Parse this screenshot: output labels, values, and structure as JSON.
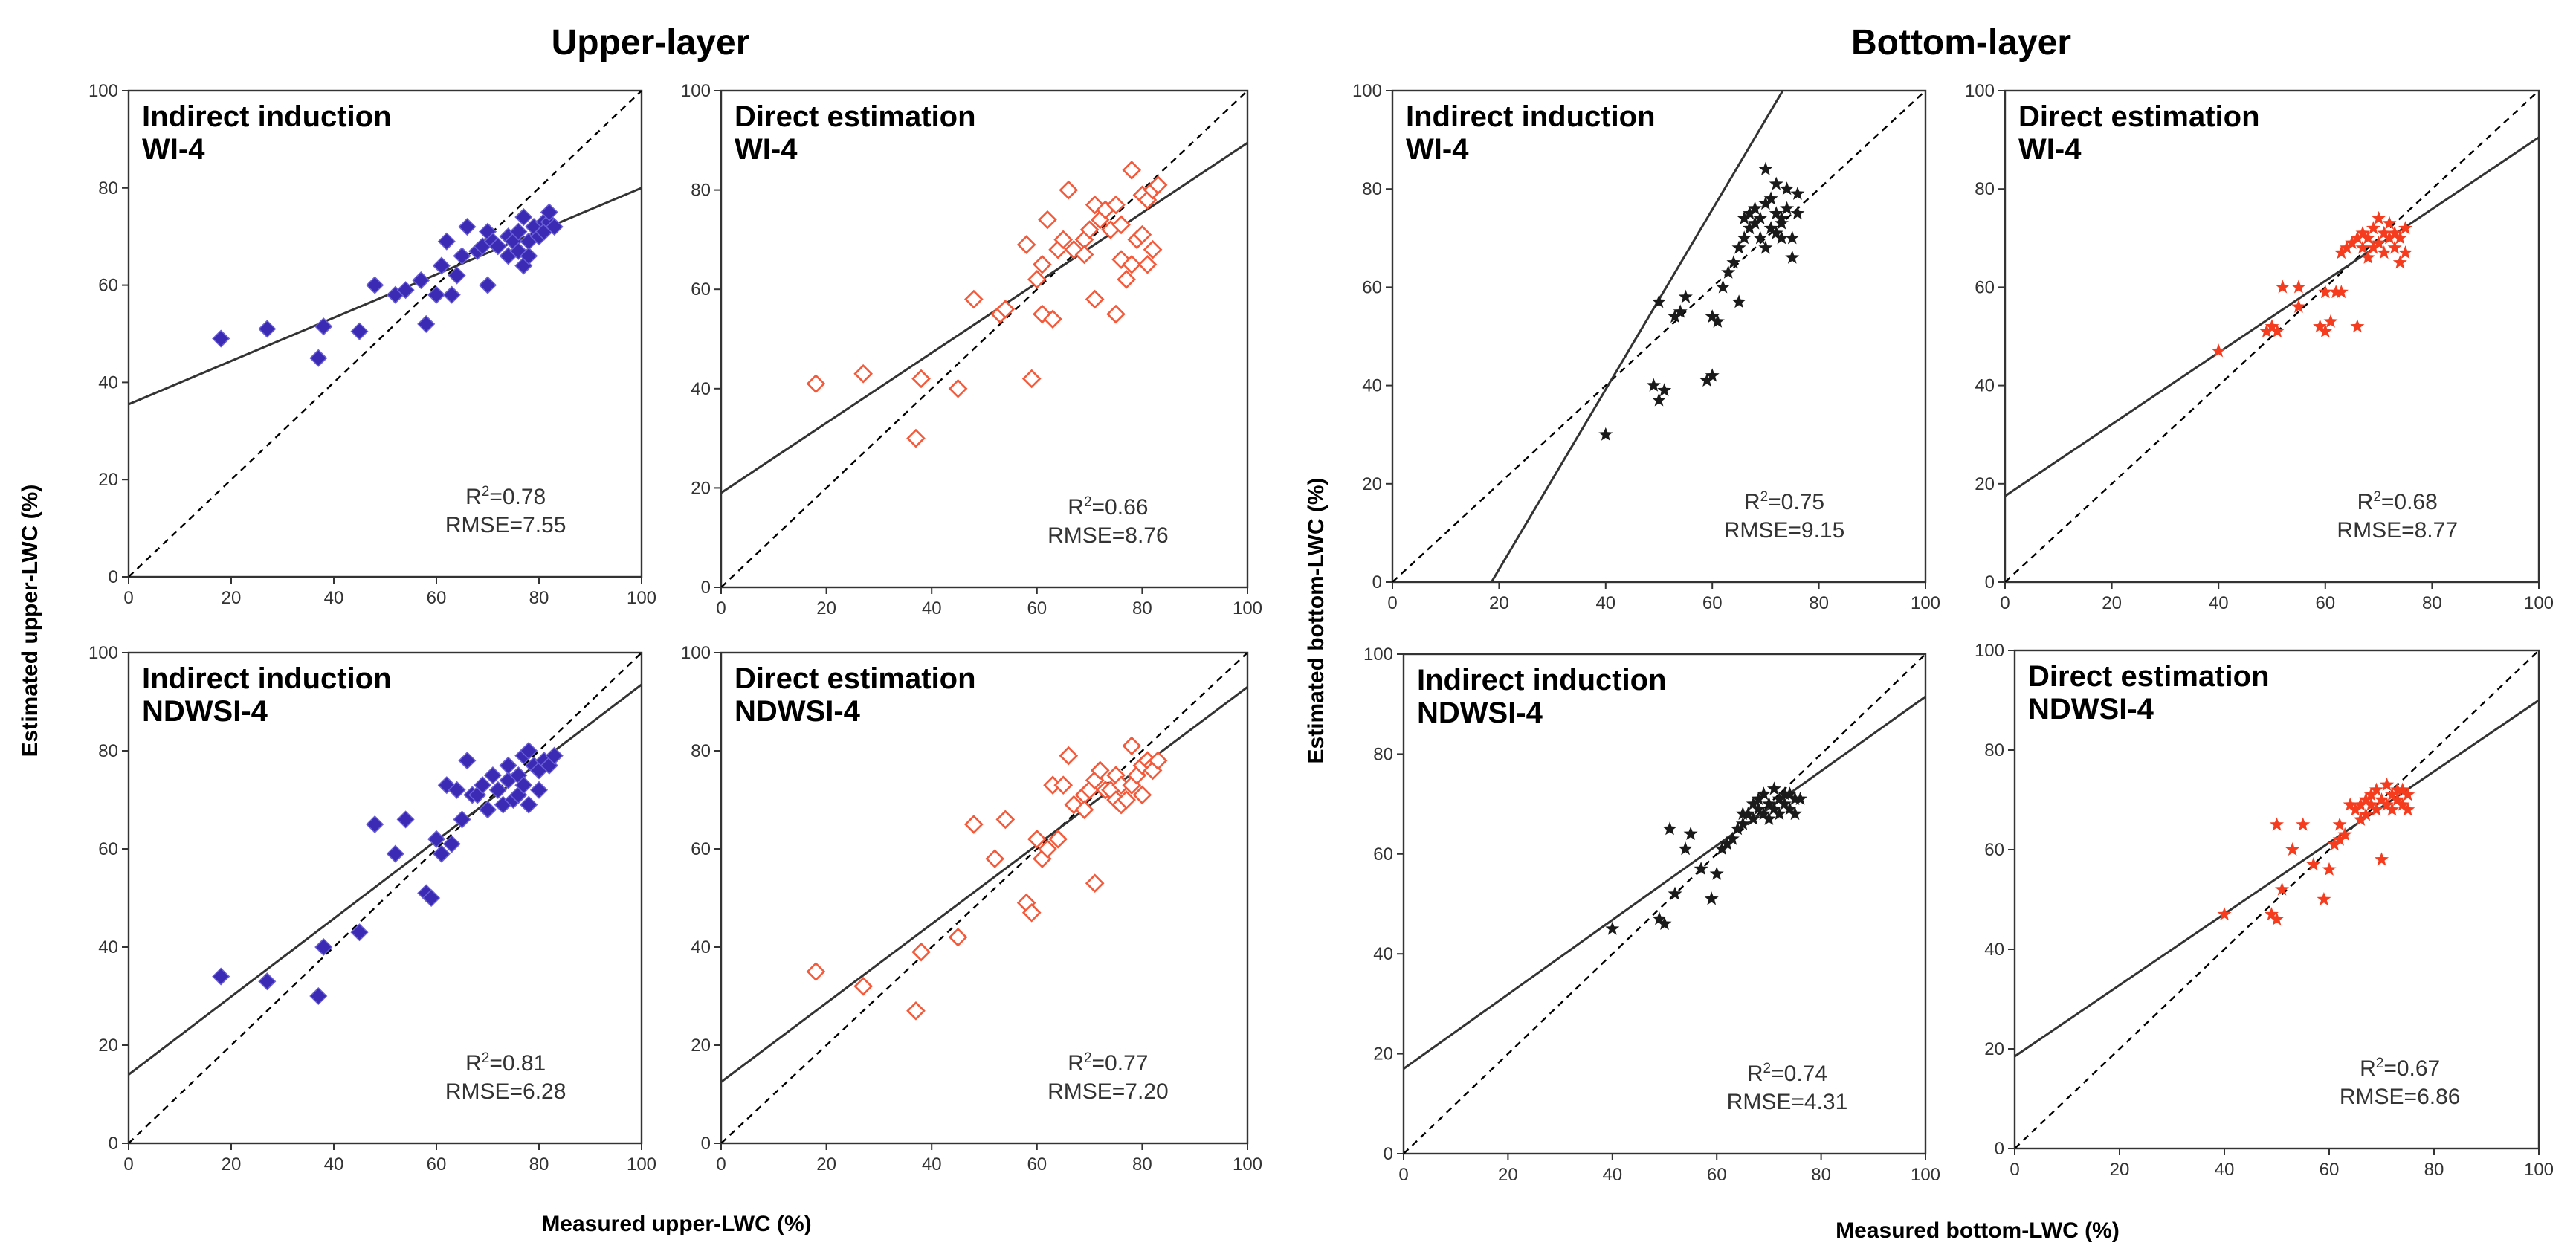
{
  "section_titles": [
    "Upper-layer",
    "Bottom-layer"
  ],
  "axis_titles": {
    "upper_y": "Estimated upper-LWC (%)",
    "bottom_y": "Estimated bottom-LWC (%)",
    "upper_x": "Measured upper-LWC (%)",
    "bottom_x": "Measured bottom-LWC (%)"
  },
  "colors": {
    "blue": "#3b2ab3",
    "orange": "#f4593a",
    "black": "#1a1a1a",
    "star_red": "#f53c1f"
  },
  "chart_data": [
    {
      "type": "scatter",
      "panel": "upper-indirect-wi4",
      "label": [
        "Indirect induction",
        "WI-4"
      ],
      "stat_r2": "=0.78",
      "stat_rmse": "RMSE=7.55",
      "xlim": [
        0,
        100
      ],
      "ylim": [
        0,
        100
      ],
      "ticks": [
        "0",
        "20",
        "40",
        "60",
        "80",
        "100"
      ],
      "marker": "diamond-filled",
      "color": "blue",
      "fit": {
        "slope": 0.445,
        "intercept": 35.5
      },
      "points": [
        [
          18,
          49
        ],
        [
          27,
          51
        ],
        [
          37,
          45
        ],
        [
          38,
          51.5
        ],
        [
          45,
          50.5
        ],
        [
          48,
          60
        ],
        [
          52,
          58
        ],
        [
          54,
          59
        ],
        [
          57,
          61
        ],
        [
          58,
          52
        ],
        [
          60,
          58
        ],
        [
          61,
          64
        ],
        [
          62,
          69
        ],
        [
          63,
          58
        ],
        [
          64,
          62
        ],
        [
          65,
          66
        ],
        [
          66,
          72
        ],
        [
          68,
          67
        ],
        [
          69,
          68
        ],
        [
          70,
          71
        ],
        [
          70,
          60
        ],
        [
          71,
          69
        ],
        [
          72,
          68
        ],
        [
          74,
          70
        ],
        [
          74,
          66
        ],
        [
          75,
          69
        ],
        [
          76,
          67
        ],
        [
          76,
          71
        ],
        [
          77,
          64
        ],
        [
          77,
          74
        ],
        [
          78,
          69
        ],
        [
          78,
          66
        ],
        [
          79,
          72
        ],
        [
          80,
          70
        ],
        [
          81,
          73
        ],
        [
          81,
          71
        ],
        [
          82,
          73
        ],
        [
          83,
          72
        ],
        [
          82,
          75
        ]
      ]
    },
    {
      "type": "scatter",
      "panel": "upper-direct-wi4",
      "label": [
        "Direct estimation",
        "WI-4"
      ],
      "stat_r2": "=0.66",
      "stat_rmse": "RMSE=8.76",
      "xlim": [
        0,
        100
      ],
      "ylim": [
        0,
        100
      ],
      "ticks": [
        "0",
        "20",
        "40",
        "60",
        "80",
        "100"
      ],
      "marker": "diamond-open",
      "color": "orange",
      "fit": {
        "slope": 0.705,
        "intercept": 19
      },
      "points": [
        [
          18,
          41
        ],
        [
          27,
          43
        ],
        [
          37,
          30
        ],
        [
          38,
          42
        ],
        [
          45,
          40
        ],
        [
          48,
          58
        ],
        [
          53,
          55
        ],
        [
          54,
          56
        ],
        [
          58,
          69
        ],
        [
          59,
          42
        ],
        [
          60,
          62
        ],
        [
          61,
          55
        ],
        [
          61,
          65
        ],
        [
          62,
          74
        ],
        [
          63,
          54
        ],
        [
          64,
          68
        ],
        [
          65,
          70
        ],
        [
          66,
          80
        ],
        [
          67,
          68
        ],
        [
          69,
          70
        ],
        [
          69,
          67
        ],
        [
          70,
          72
        ],
        [
          71,
          77
        ],
        [
          71,
          58
        ],
        [
          72,
          74
        ],
        [
          73,
          76
        ],
        [
          74,
          72
        ],
        [
          75,
          77
        ],
        [
          75,
          55
        ],
        [
          76,
          66
        ],
        [
          76,
          73
        ],
        [
          77,
          62
        ],
        [
          78,
          84
        ],
        [
          78,
          65
        ],
        [
          79,
          70
        ],
        [
          80,
          79
        ],
        [
          80,
          71
        ],
        [
          81,
          78
        ],
        [
          81,
          65
        ],
        [
          82,
          80
        ],
        [
          82,
          68
        ],
        [
          83,
          81
        ]
      ]
    },
    {
      "type": "scatter",
      "panel": "upper-indirect-ndwsi4",
      "label": [
        "Indirect induction",
        "NDWSI-4"
      ],
      "stat_r2": "=0.81",
      "stat_rmse": "RMSE=6.28",
      "xlim": [
        0,
        100
      ],
      "ylim": [
        0,
        100
      ],
      "ticks": [
        "0",
        "20",
        "40",
        "60",
        "80",
        "100"
      ],
      "marker": "diamond-filled",
      "color": "blue",
      "fit": {
        "slope": 0.795,
        "intercept": 14
      },
      "points": [
        [
          18,
          34
        ],
        [
          27,
          33
        ],
        [
          37,
          30
        ],
        [
          38,
          40
        ],
        [
          45,
          43
        ],
        [
          48,
          65
        ],
        [
          52,
          59
        ],
        [
          54,
          66
        ],
        [
          58,
          51
        ],
        [
          59,
          50
        ],
        [
          60,
          62
        ],
        [
          61,
          59
        ],
        [
          62,
          73
        ],
        [
          63,
          61
        ],
        [
          64,
          72
        ],
        [
          65,
          66
        ],
        [
          66,
          78
        ],
        [
          67,
          71
        ],
        [
          68,
          71
        ],
        [
          69,
          73
        ],
        [
          70,
          68
        ],
        [
          71,
          75
        ],
        [
          72,
          72
        ],
        [
          73,
          69
        ],
        [
          74,
          74
        ],
        [
          74,
          77
        ],
        [
          75,
          70
        ],
        [
          76,
          75
        ],
        [
          76,
          71
        ],
        [
          77,
          79
        ],
        [
          77,
          73
        ],
        [
          78,
          80
        ],
        [
          78,
          69
        ],
        [
          79,
          77
        ],
        [
          80,
          76
        ],
        [
          80,
          72
        ],
        [
          81,
          78
        ],
        [
          82,
          77
        ],
        [
          83,
          79
        ]
      ]
    },
    {
      "type": "scatter",
      "panel": "upper-direct-ndwsi4",
      "label": [
        "Direct estimation",
        "NDWSI-4"
      ],
      "stat_r2": "=0.77",
      "stat_rmse": "RMSE=7.20",
      "xlim": [
        0,
        100
      ],
      "ylim": [
        0,
        100
      ],
      "ticks": [
        "0",
        "20",
        "40",
        "60",
        "80",
        "100"
      ],
      "marker": "diamond-open",
      "color": "orange",
      "fit": {
        "slope": 0.805,
        "intercept": 12.5
      },
      "points": [
        [
          18,
          35
        ],
        [
          27,
          32
        ],
        [
          37,
          27
        ],
        [
          38,
          39
        ],
        [
          45,
          42
        ],
        [
          48,
          65
        ],
        [
          52,
          58
        ],
        [
          54,
          66
        ],
        [
          58,
          49
        ],
        [
          59,
          47
        ],
        [
          60,
          62
        ],
        [
          61,
          58
        ],
        [
          62,
          60
        ],
        [
          63,
          73
        ],
        [
          64,
          62
        ],
        [
          65,
          73
        ],
        [
          66,
          79
        ],
        [
          67,
          69
        ],
        [
          69,
          71
        ],
        [
          69,
          68
        ],
        [
          70,
          72
        ],
        [
          71,
          53
        ],
        [
          71,
          74
        ],
        [
          72,
          76
        ],
        [
          73,
          72
        ],
        [
          74,
          72
        ],
        [
          75,
          75
        ],
        [
          75,
          70
        ],
        [
          76,
          73
        ],
        [
          76,
          69
        ],
        [
          77,
          70
        ],
        [
          78,
          81
        ],
        [
          78,
          73
        ],
        [
          79,
          75
        ],
        [
          80,
          71
        ],
        [
          80,
          77
        ],
        [
          81,
          78
        ],
        [
          82,
          77
        ],
        [
          82,
          76
        ],
        [
          83,
          78
        ]
      ]
    },
    {
      "type": "scatter",
      "panel": "bottom-indirect-wi4",
      "label": [
        "Indirect induction",
        "WI-4"
      ],
      "stat_r2": "=0.75",
      "stat_rmse": "RMSE=9.15",
      "xlim": [
        0,
        100
      ],
      "ylim": [
        0,
        100
      ],
      "ticks": [
        "0",
        "20",
        "40",
        "60",
        "80",
        "100"
      ],
      "marker": "star",
      "color": "black",
      "fit": {
        "slope": 1.83,
        "intercept": -34
      },
      "points": [
        [
          40,
          30
        ],
        [
          49,
          40
        ],
        [
          50,
          57
        ],
        [
          50,
          37
        ],
        [
          51,
          39
        ],
        [
          53,
          54
        ],
        [
          54,
          55
        ],
        [
          55,
          58
        ],
        [
          59,
          41
        ],
        [
          60,
          42
        ],
        [
          60,
          54
        ],
        [
          61,
          53
        ],
        [
          62,
          60
        ],
        [
          63,
          63
        ],
        [
          64,
          65
        ],
        [
          65,
          68
        ],
        [
          65,
          57
        ],
        [
          66,
          74
        ],
        [
          66,
          70
        ],
        [
          67,
          72
        ],
        [
          67,
          75
        ],
        [
          68,
          73
        ],
        [
          68,
          76
        ],
        [
          69,
          74
        ],
        [
          69,
          70
        ],
        [
          70,
          77
        ],
        [
          70,
          68
        ],
        [
          71,
          72
        ],
        [
          71,
          78
        ],
        [
          72,
          71
        ],
        [
          72,
          75
        ],
        [
          73,
          70
        ],
        [
          73,
          73
        ],
        [
          74,
          76
        ],
        [
          74,
          80
        ],
        [
          75,
          70
        ],
        [
          75,
          66
        ],
        [
          76,
          79
        ],
        [
          76,
          75
        ],
        [
          70,
          84
        ],
        [
          72,
          81
        ],
        [
          73,
          74
        ]
      ]
    },
    {
      "type": "scatter",
      "panel": "bottom-direct-wi4",
      "label": [
        "Direct estimation",
        "WI-4"
      ],
      "stat_r2": "=0.68",
      "stat_rmse": "RMSE=8.77",
      "xlim": [
        0,
        100
      ],
      "ylim": [
        0,
        100
      ],
      "ticks": [
        "0",
        "20",
        "40",
        "60",
        "80",
        "100"
      ],
      "marker": "star",
      "color": "star_red",
      "fit": {
        "slope": 0.73,
        "intercept": 17.5
      },
      "points": [
        [
          40,
          47
        ],
        [
          49,
          51
        ],
        [
          50,
          52
        ],
        [
          51,
          51
        ],
        [
          52,
          60
        ],
        [
          55,
          56
        ],
        [
          55,
          60
        ],
        [
          59,
          52
        ],
        [
          60,
          51
        ],
        [
          60,
          59
        ],
        [
          61,
          53
        ],
        [
          62,
          59
        ],
        [
          63,
          59
        ],
        [
          63,
          67
        ],
        [
          64,
          68
        ],
        [
          65,
          69
        ],
        [
          66,
          52
        ],
        [
          66,
          70
        ],
        [
          67,
          68
        ],
        [
          67,
          71
        ],
        [
          68,
          70
        ],
        [
          68,
          66
        ],
        [
          69,
          72
        ],
        [
          69,
          68
        ],
        [
          70,
          69
        ],
        [
          70,
          74
        ],
        [
          71,
          71
        ],
        [
          71,
          67
        ],
        [
          72,
          70
        ],
        [
          72,
          73
        ],
        [
          73,
          68
        ],
        [
          73,
          71
        ],
        [
          74,
          65
        ],
        [
          74,
          70
        ],
        [
          75,
          72
        ],
        [
          75,
          67
        ]
      ]
    },
    {
      "type": "scatter",
      "panel": "bottom-indirect-ndwsi4",
      "label": [
        "Indirect induction",
        "NDWSI-4"
      ],
      "stat_r2": "=0.74",
      "stat_rmse": "RMSE=4.31",
      "xlim": [
        0,
        100
      ],
      "ylim": [
        0,
        100
      ],
      "ticks": [
        "0",
        "20",
        "40",
        "60",
        "80",
        "100"
      ],
      "marker": "star",
      "color": "black",
      "fit": {
        "slope": 0.745,
        "intercept": 17
      },
      "points": [
        [
          40,
          45
        ],
        [
          49,
          47
        ],
        [
          50,
          46
        ],
        [
          51,
          65
        ],
        [
          52,
          52
        ],
        [
          54,
          61
        ],
        [
          55,
          64
        ],
        [
          57,
          57
        ],
        [
          59,
          51
        ],
        [
          60,
          56
        ],
        [
          61,
          61
        ],
        [
          62,
          62
        ],
        [
          63,
          63
        ],
        [
          64,
          65
        ],
        [
          65,
          68
        ],
        [
          65,
          66
        ],
        [
          66,
          68
        ],
        [
          67,
          70
        ],
        [
          67,
          67
        ],
        [
          68,
          69
        ],
        [
          68,
          71
        ],
        [
          69,
          68
        ],
        [
          69,
          72
        ],
        [
          70,
          70
        ],
        [
          70,
          67
        ],
        [
          71,
          73
        ],
        [
          71,
          69
        ],
        [
          72,
          71
        ],
        [
          72,
          68
        ],
        [
          73,
          70
        ],
        [
          73,
          72
        ],
        [
          74,
          69
        ],
        [
          74,
          72
        ],
        [
          75,
          71
        ],
        [
          75,
          68
        ],
        [
          76,
          71
        ]
      ]
    },
    {
      "type": "scatter",
      "panel": "bottom-direct-ndwsi4",
      "label": [
        "Direct estimation",
        "NDWSI-4"
      ],
      "stat_r2": "=0.67",
      "stat_rmse": "RMSE=6.86",
      "xlim": [
        0,
        100
      ],
      "ylim": [
        0,
        100
      ],
      "ticks": [
        "0",
        "20",
        "40",
        "60",
        "80",
        "100"
      ],
      "marker": "star",
      "color": "star_red",
      "fit": {
        "slope": 0.715,
        "intercept": 18.5
      },
      "points": [
        [
          40,
          47
        ],
        [
          49,
          47
        ],
        [
          50,
          46
        ],
        [
          50,
          65
        ],
        [
          51,
          52
        ],
        [
          53,
          60
        ],
        [
          55,
          65
        ],
        [
          57,
          57
        ],
        [
          59,
          50
        ],
        [
          60,
          56
        ],
        [
          61,
          61
        ],
        [
          62,
          62
        ],
        [
          62,
          65
        ],
        [
          63,
          63
        ],
        [
          64,
          69
        ],
        [
          65,
          68
        ],
        [
          66,
          69
        ],
        [
          66,
          66
        ],
        [
          67,
          70
        ],
        [
          67,
          67
        ],
        [
          68,
          69
        ],
        [
          68,
          71
        ],
        [
          69,
          68
        ],
        [
          69,
          72
        ],
        [
          70,
          58
        ],
        [
          70,
          70
        ],
        [
          71,
          73
        ],
        [
          71,
          69
        ],
        [
          72,
          71
        ],
        [
          72,
          68
        ],
        [
          73,
          70
        ],
        [
          73,
          72
        ],
        [
          74,
          69
        ],
        [
          74,
          72
        ],
        [
          75,
          71
        ],
        [
          75,
          68
        ]
      ]
    }
  ]
}
